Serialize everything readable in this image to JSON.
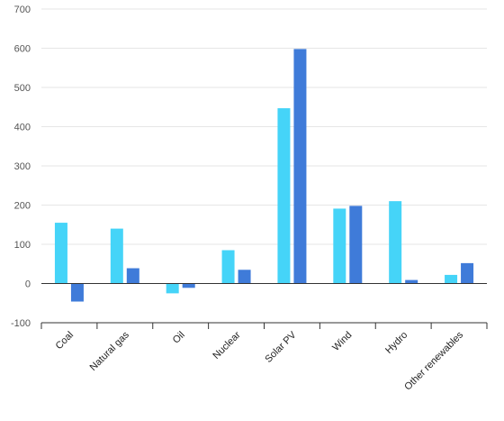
{
  "chart_data": {
    "type": "bar",
    "categories": [
      "Coal",
      "Natural gas",
      "Oil",
      "Nuclear",
      "Solar PV",
      "Wind",
      "Hydro",
      "Other renewables"
    ],
    "series": [
      {
        "values": [
          155,
          140,
          -25,
          85,
          447,
          191,
          210,
          22
        ]
      },
      {
        "values": [
          -46,
          39,
          -11,
          35,
          598,
          198,
          9,
          52
        ]
      }
    ],
    "yticks": [
      -100,
      0,
      100,
      200,
      300,
      400,
      500,
      600,
      700
    ],
    "ylim": [
      -100,
      700
    ],
    "grid": true,
    "colors": [
      "#45d4f8",
      "#3f7bd9"
    ],
    "grid_color": "#e6e6e6",
    "axis_color": "#333333"
  }
}
